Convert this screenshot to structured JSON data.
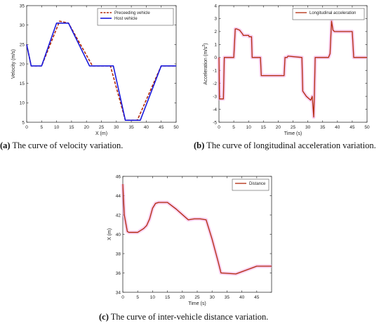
{
  "captions": {
    "a_tag": "(a)",
    "a_text": " The curve of velocity variation.",
    "b_tag": "(b)",
    "b_text": " The curve of longitudinal acceleration variation.",
    "c_tag": "(c)",
    "c_text": " The curve of inter-vehicle distance variation."
  },
  "colors": {
    "dark_red": "#b22a0a",
    "blue": "#1a1adc",
    "pink": "#f2a6e6",
    "axis": "#333333"
  },
  "chart_data": [
    {
      "type": "line",
      "xlabel": "X (m)",
      "ylabel": "Velocity (m/s)",
      "xlim": [
        0,
        50
      ],
      "ylim": [
        5,
        35
      ],
      "xticks": [
        0,
        5,
        10,
        15,
        20,
        25,
        30,
        35,
        40,
        45,
        50
      ],
      "yticks": [
        5,
        10,
        15,
        20,
        25,
        30,
        35
      ],
      "legend": "top-right",
      "series": [
        {
          "name": "Preceeding vehicle",
          "style": "dashed",
          "color": "#b22a0a",
          "x": [
            0,
            1.5,
            5,
            11,
            14,
            22,
            28,
            33,
            37,
            45,
            50
          ],
          "y": [
            25,
            19.5,
            19.5,
            31,
            30.5,
            19.5,
            19.5,
            5.5,
            5.5,
            19.5,
            19.5
          ]
        },
        {
          "name": "Host vehicle",
          "style": "solid",
          "color": "#1a1adc",
          "x": [
            0,
            1.5,
            5,
            10,
            14,
            21,
            29,
            33,
            38,
            45,
            50
          ],
          "y": [
            25,
            19.5,
            19.5,
            30.5,
            30.5,
            19.5,
            19.5,
            5.5,
            5.5,
            19.5,
            19.5
          ]
        }
      ]
    },
    {
      "type": "line",
      "xlabel": "Time (s)",
      "ylabel": "Acceleration (m/s",
      "ylabel_sup": "2",
      "ylabel_tail": ")",
      "xlim": [
        0,
        50
      ],
      "ylim": [
        -5,
        4
      ],
      "xticks": [
        0,
        5,
        10,
        15,
        20,
        25,
        30,
        35,
        40,
        45,
        50
      ],
      "yticks": [
        -5,
        -4,
        -3,
        -2,
        -1,
        0,
        1,
        2,
        3,
        4
      ],
      "legend": "top-right",
      "series": [
        {
          "name": "Longitudinal acceleration",
          "color": "#b22a0a",
          "x": [
            0,
            0.2,
            0.5,
            1.5,
            1.8,
            5,
            5.5,
            6,
            7,
            8,
            8.2,
            10,
            10.2,
            11,
            11.2,
            14,
            14.3,
            22,
            22.3,
            23,
            23.3,
            28,
            28.3,
            29.5,
            30,
            31,
            31.5,
            32,
            32.2,
            32.5,
            33,
            33.5,
            37,
            37.5,
            38,
            38.5,
            39,
            45,
            45.5,
            50
          ],
          "y": [
            0,
            -3.2,
            -3.2,
            -3.2,
            0,
            0,
            2.2,
            2.2,
            2.1,
            1.8,
            1.7,
            1.7,
            1.6,
            1.6,
            0,
            0,
            -1.4,
            -1.4,
            0,
            0,
            0.1,
            0,
            -2.6,
            -3.0,
            -3.1,
            -3.3,
            -3.0,
            -4.6,
            -3.0,
            0,
            0,
            0,
            0,
            0.3,
            2.8,
            2.1,
            2.0,
            2.0,
            0,
            0
          ]
        }
      ]
    },
    {
      "type": "line",
      "xlabel": "Time (s)",
      "ylabel": "X (m)",
      "xlim": [
        0,
        50
      ],
      "ylim": [
        34,
        46
      ],
      "xticks": [
        0,
        5,
        10,
        15,
        20,
        25,
        30,
        35,
        40,
        45
      ],
      "yticks": [
        34,
        36,
        38,
        40,
        42,
        44,
        46
      ],
      "legend": "top-right",
      "series": [
        {
          "name": "Distance",
          "color": "#b22a0a",
          "x": [
            0,
            0.5,
            1.5,
            2,
            5,
            6,
            7,
            8,
            9,
            10,
            11,
            12,
            15,
            18,
            22,
            24,
            26,
            28,
            30,
            32,
            33,
            38,
            45,
            50
          ],
          "y": [
            45.2,
            42,
            40.3,
            40.2,
            40.2,
            40.4,
            40.6,
            40.9,
            41.6,
            42.7,
            43.2,
            43.3,
            43.3,
            42.6,
            41.5,
            41.6,
            41.6,
            41.5,
            39.5,
            37.2,
            36.0,
            35.9,
            36.7,
            36.7
          ]
        }
      ]
    }
  ]
}
